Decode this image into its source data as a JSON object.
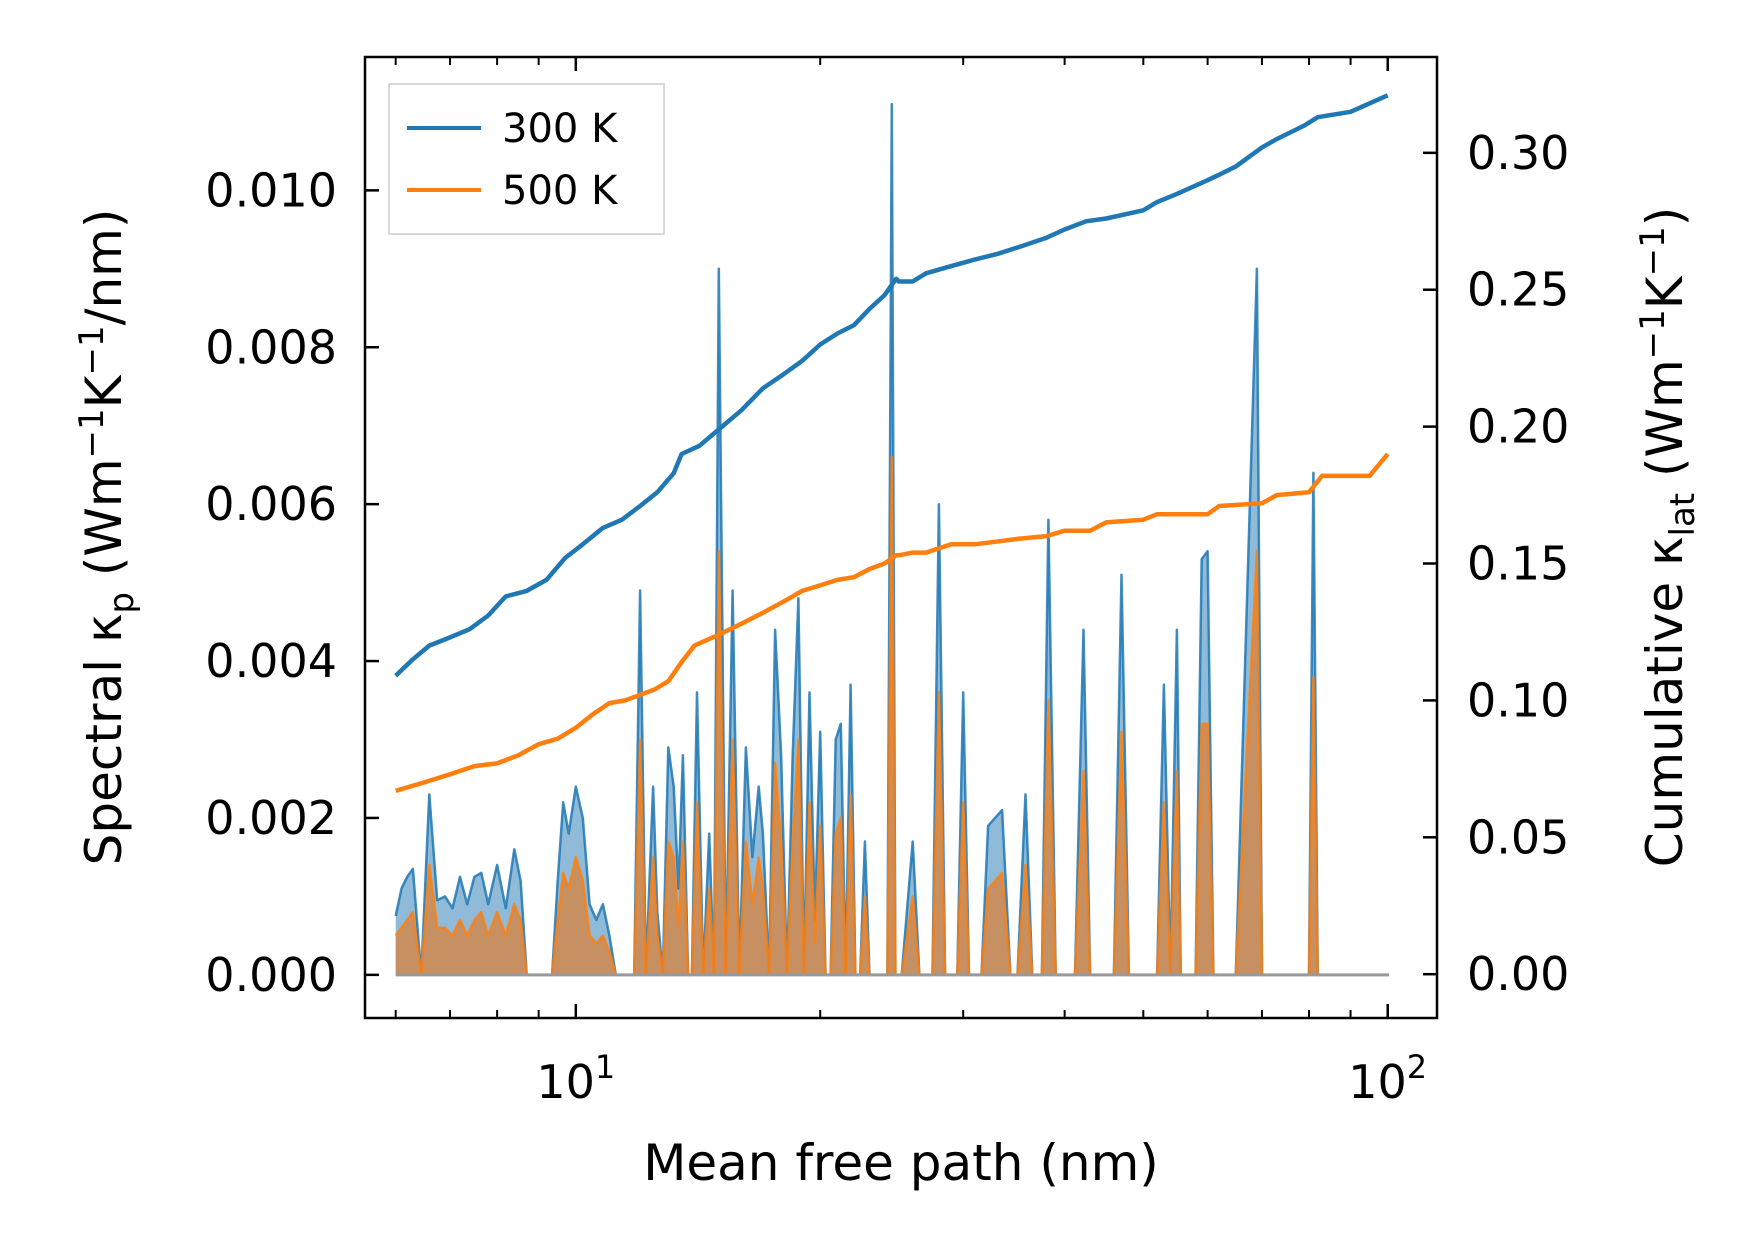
{
  "chart_data": {
    "type": "line",
    "title": "",
    "xlabel": "Mean free path (nm)",
    "xscale": "log",
    "xlim": [
      5.5,
      115
    ],
    "x_ticks": [
      {
        "value": 10,
        "base": "10",
        "exp": "1"
      },
      {
        "value": 100,
        "base": "10",
        "exp": "2"
      }
    ],
    "left_axis": {
      "label": {
        "main": "Spectral κ",
        "sub": "p",
        "pre": " (Wm",
        "e1": "−1",
        "mid": "K",
        "e2": "−1",
        "post": "/nm)"
      },
      "ylim": [
        -0.00055,
        0.0117
      ],
      "ticks": [
        "0.000",
        "0.002",
        "0.004",
        "0.006",
        "0.008",
        "0.010"
      ]
    },
    "right_axis": {
      "label": {
        "main": "Cumulative κ",
        "sub": "lat",
        "pre": " (Wm",
        "e1": "−1",
        "mid": "K",
        "e2": "−1",
        "post": ")"
      },
      "ylim": [
        -0.016,
        0.335
      ],
      "ticks": [
        "0.00",
        "0.05",
        "0.10",
        "0.15",
        "0.20",
        "0.25",
        "0.30"
      ]
    },
    "legend": {
      "position": "top-left",
      "entries": [
        "300 K",
        "500 K"
      ]
    },
    "colors": {
      "s300": "#1f77b4",
      "s500": "#ff7f0e",
      "fill300": "#1f77b4",
      "fill500": "#d9823a"
    },
    "series": [
      {
        "name": "300 K",
        "cumulative": {
          "x": [
            6,
            6.3,
            6.6,
            7,
            7.4,
            7.8,
            8.2,
            8.7,
            9.2,
            9.7,
            10.2,
            10.8,
            11.4,
            12,
            12.6,
            13.2,
            13.5,
            14.2,
            15,
            16,
            17,
            18,
            19,
            20,
            21,
            22,
            23,
            24,
            24.8,
            25,
            26,
            27,
            28.5,
            31,
            33,
            35.5,
            38,
            40,
            42.5,
            45,
            50,
            52,
            55,
            60,
            62,
            65,
            70,
            73,
            79,
            82,
            90,
            100
          ],
          "y": [
            0.109,
            0.115,
            0.12,
            0.123,
            0.126,
            0.131,
            0.138,
            0.14,
            0.144,
            0.152,
            0.157,
            0.163,
            0.166,
            0.171,
            0.176,
            0.183,
            0.19,
            0.193,
            0.199,
            0.206,
            0.214,
            0.219,
            0.224,
            0.23,
            0.234,
            0.237,
            0.243,
            0.248,
            0.254,
            0.253,
            0.253,
            0.256,
            0.258,
            0.261,
            0.263,
            0.266,
            0.269,
            0.272,
            0.275,
            0.276,
            0.279,
            0.282,
            0.285,
            0.29,
            0.292,
            0.295,
            0.302,
            0.305,
            0.31,
            0.313,
            0.315,
            0.321
          ]
        },
        "spectral": {
          "x": [
            6.0,
            6.1,
            6.2,
            6.3,
            6.45,
            6.6,
            6.75,
            6.9,
            7.05,
            7.2,
            7.35,
            7.5,
            7.65,
            7.8,
            8.0,
            8.2,
            8.4,
            8.55,
            8.7,
            8.85,
            9.0,
            9.2,
            9.35,
            9.5,
            9.65,
            9.8,
            10.0,
            10.2,
            10.4,
            10.6,
            10.8,
            11.0,
            11.2,
            11.4,
            11.6,
            11.8,
            12.0,
            12.2,
            12.45,
            12.6,
            12.8,
            13.0,
            13.2,
            13.38,
            13.55,
            13.75,
            13.9,
            14.1,
            14.35,
            14.6,
            14.8,
            15.0,
            15.3,
            15.6,
            15.9,
            16.2,
            16.5,
            16.8,
            17.0,
            17.3,
            17.6,
            17.9,
            18.2,
            18.5,
            18.8,
            19.1,
            19.4,
            19.7,
            20.0,
            20.3,
            20.6,
            20.9,
            21.2,
            21.5,
            21.8,
            22.1,
            22.4,
            22.7,
            23.0,
            23.4,
            23.8,
            24.2,
            24.5,
            24.75,
            25.0,
            25.2,
            26.0,
            26.5,
            27.0,
            27.5,
            28.0,
            28.5,
            29.0,
            29.5,
            30.0,
            30.5,
            31.0,
            31.6,
            32.2,
            33.5,
            34.3,
            35.0,
            35.8,
            36.5,
            37.5,
            38.2,
            39.0,
            40.0,
            40.6,
            41.2,
            42.2,
            43.0,
            44.0,
            45.0,
            46.0,
            47.0,
            48.0,
            49.0,
            50.0,
            51.0,
            52.0,
            53.0,
            54.0,
            55.0,
            55.6,
            56.0,
            57.0,
            58.0,
            59.0,
            60.0,
            61.0,
            61.8,
            62.5,
            63.5,
            65.0,
            69.0,
            70.0,
            70.5,
            71.5,
            72.5,
            73.5,
            79.0,
            80.0,
            81.0,
            82.0,
            83.0,
            84.0,
            97.0,
            98.5,
            100.0,
            100.3
          ],
          "v300": [
            0.00075,
            0.0011,
            0.00125,
            0.00135,
            0.0,
            0.0023,
            0.00095,
            0.001,
            0.00085,
            0.00125,
            0.0009,
            0.00125,
            0.0013,
            0.0009,
            0.0014,
            0.00085,
            0.0016,
            0.0012,
            0.0,
            0.0,
            0.0,
            0.0,
            0.0,
            0.0012,
            0.0022,
            0.0018,
            0.0024,
            0.002,
            0.0009,
            0.0007,
            0.0009,
            0.0005,
            0.0,
            0.0,
            0.0,
            0.0,
            0.0049,
            0.0,
            0.0024,
            0.0008,
            0.0,
            0.0029,
            0.0024,
            0.0011,
            0.0028,
            0.0,
            0.0,
            0.0036,
            0.0,
            0.0018,
            0.0,
            0.009,
            0.0,
            0.0049,
            0.0,
            0.0029,
            0.0015,
            0.0024,
            0.0018,
            0.0,
            0.0044,
            0.0028,
            0.0,
            0.0028,
            0.0048,
            0.0,
            0.0036,
            0.0007,
            0.0031,
            0.0,
            0.0,
            0.003,
            0.0032,
            0.0,
            0.0037,
            0.0,
            0.0,
            0.0017,
            0.0,
            0.0,
            0.0,
            0.0,
            0.0111,
            0.0,
            0.0,
            0.0,
            0.0017,
            0.0,
            0.0,
            0.0,
            0.006,
            0.0,
            0.0,
            0.0,
            0.0036,
            0.0,
            0.0,
            0.0,
            0.0019,
            0.0021,
            0.0,
            0.0,
            0.0023,
            0.0,
            0.0,
            0.0058,
            0.0,
            0.0,
            0.0,
            0.0,
            0.0044,
            0.0,
            0.0,
            0.0,
            0.0,
            0.0051,
            0.0,
            0.0,
            0.0,
            0.0,
            0.0,
            0.0037,
            0.0,
            0.0044,
            0.0,
            0.0,
            0.0,
            0.0,
            0.0053,
            0.0054,
            0.0,
            0.0,
            0.0,
            0.0,
            0.0,
            0.009,
            0.0,
            0.0,
            0.0,
            0.0,
            0.0,
            0.0,
            0.0,
            0.0064,
            0.0,
            0.0,
            0.0,
            0.0,
            0.0,
            0.0,
            0.0,
            0.0,
            0.0,
            0.0
          ],
          "v500": [
            0.0005,
            0.0006,
            0.0007,
            0.0008,
            0.0,
            0.0014,
            0.0006,
            0.0006,
            0.0005,
            0.0007,
            0.0005,
            0.0007,
            0.0008,
            0.0005,
            0.0008,
            0.0005,
            0.0009,
            0.0007,
            0.0,
            0.0,
            0.0,
            0.0,
            0.0,
            0.0007,
            0.0013,
            0.0011,
            0.0015,
            0.0012,
            0.0005,
            0.0004,
            0.0005,
            0.0003,
            0.0,
            0.0,
            0.0,
            0.0,
            0.003,
            0.0,
            0.0015,
            0.0005,
            0.0,
            0.0017,
            0.0015,
            0.0006,
            0.0017,
            0.0,
            0.0,
            0.0022,
            0.0,
            0.0011,
            0.0,
            0.0054,
            0.0,
            0.003,
            0.0,
            0.0017,
            0.0009,
            0.0015,
            0.0011,
            0.0,
            0.0027,
            0.0017,
            0.0,
            0.0017,
            0.003,
            0.0,
            0.0022,
            0.0004,
            0.0019,
            0.0,
            0.0,
            0.0018,
            0.002,
            0.0,
            0.0023,
            0.0,
            0.0,
            0.001,
            0.0,
            0.0,
            0.0,
            0.0,
            0.0066,
            0.0,
            0.0,
            0.0,
            0.001,
            0.0,
            0.0,
            0.0,
            0.0036,
            0.0,
            0.0,
            0.0,
            0.0022,
            0.0,
            0.0,
            0.0,
            0.0011,
            0.0013,
            0.0,
            0.0,
            0.0014,
            0.0,
            0.0,
            0.0035,
            0.0,
            0.0,
            0.0,
            0.0,
            0.0026,
            0.0,
            0.0,
            0.0,
            0.0,
            0.0031,
            0.0,
            0.0,
            0.0,
            0.0,
            0.0,
            0.0022,
            0.0,
            0.0026,
            0.0,
            0.0,
            0.0,
            0.0,
            0.0032,
            0.0032,
            0.0,
            0.0,
            0.0,
            0.0,
            0.0,
            0.0054,
            0.0,
            0.0,
            0.0,
            0.0,
            0.0,
            0.0,
            0.0,
            0.0038,
            0.0,
            0.0,
            0.0,
            0.0,
            0.0,
            0.0,
            0.0,
            0.0,
            0.0,
            0.0
          ]
        }
      },
      {
        "name": "500 K",
        "cumulative": {
          "x": [
            6,
            6.5,
            7,
            7.5,
            8,
            8.5,
            9,
            9.5,
            10,
            10.5,
            11,
            11.5,
            12,
            12.5,
            13,
            13.5,
            14,
            15,
            16,
            17,
            18,
            19,
            20,
            21,
            22,
            23,
            24,
            24.8,
            25,
            26,
            27,
            29,
            31,
            35,
            38,
            40,
            43,
            45,
            50,
            52,
            60,
            62,
            70,
            73,
            80,
            83,
            95,
            100
          ],
          "y": [
            0.067,
            0.07,
            0.073,
            0.076,
            0.077,
            0.08,
            0.084,
            0.086,
            0.09,
            0.095,
            0.099,
            0.1,
            0.102,
            0.104,
            0.107,
            0.114,
            0.12,
            0.124,
            0.128,
            0.132,
            0.136,
            0.14,
            0.142,
            0.144,
            0.145,
            0.148,
            0.15,
            0.153,
            0.153,
            0.154,
            0.154,
            0.157,
            0.157,
            0.159,
            0.16,
            0.162,
            0.162,
            0.165,
            0.166,
            0.168,
            0.168,
            0.171,
            0.172,
            0.175,
            0.176,
            0.182,
            0.182,
            0.19
          ]
        }
      }
    ]
  }
}
